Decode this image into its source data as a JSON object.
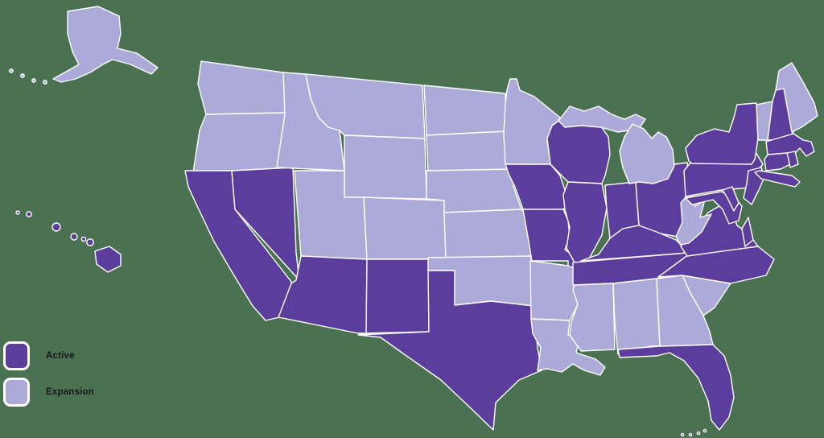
{
  "background_color": "#4a7152",
  "legend": {
    "items": [
      {
        "key": "active",
        "label": "Active",
        "color": "#5a3d9c"
      },
      {
        "key": "expansion",
        "label": "Expansion",
        "color": "#abaad9"
      }
    ]
  },
  "map": {
    "border_color": "#ffffff",
    "states": [
      {
        "id": "WA",
        "name": "Washington",
        "status": "expansion"
      },
      {
        "id": "OR",
        "name": "Oregon",
        "status": "expansion"
      },
      {
        "id": "CA",
        "name": "California",
        "status": "active"
      },
      {
        "id": "NV",
        "name": "Nevada",
        "status": "active"
      },
      {
        "id": "ID",
        "name": "Idaho",
        "status": "expansion"
      },
      {
        "id": "MT",
        "name": "Montana",
        "status": "expansion"
      },
      {
        "id": "WY",
        "name": "Wyoming",
        "status": "expansion"
      },
      {
        "id": "UT",
        "name": "Utah",
        "status": "expansion"
      },
      {
        "id": "CO",
        "name": "Colorado",
        "status": "expansion"
      },
      {
        "id": "AZ",
        "name": "Arizona",
        "status": "active"
      },
      {
        "id": "NM",
        "name": "New Mexico",
        "status": "active"
      },
      {
        "id": "ND",
        "name": "North Dakota",
        "status": "expansion"
      },
      {
        "id": "SD",
        "name": "South Dakota",
        "status": "expansion"
      },
      {
        "id": "NE",
        "name": "Nebraska",
        "status": "expansion"
      },
      {
        "id": "KS",
        "name": "Kansas",
        "status": "expansion"
      },
      {
        "id": "OK",
        "name": "Oklahoma",
        "status": "expansion"
      },
      {
        "id": "TX",
        "name": "Texas",
        "status": "active"
      },
      {
        "id": "MN",
        "name": "Minnesota",
        "status": "expansion"
      },
      {
        "id": "IA",
        "name": "Iowa",
        "status": "active"
      },
      {
        "id": "MO",
        "name": "Missouri",
        "status": "active"
      },
      {
        "id": "AR",
        "name": "Arkansas",
        "status": "expansion"
      },
      {
        "id": "LA",
        "name": "Louisiana",
        "status": "expansion"
      },
      {
        "id": "WI",
        "name": "Wisconsin",
        "status": "active"
      },
      {
        "id": "IL",
        "name": "Illinois",
        "status": "active"
      },
      {
        "id": "IN",
        "name": "Indiana",
        "status": "active"
      },
      {
        "id": "OH",
        "name": "Ohio",
        "status": "active"
      },
      {
        "id": "KY",
        "name": "Kentucky",
        "status": "active"
      },
      {
        "id": "TN",
        "name": "Tennessee",
        "status": "active"
      },
      {
        "id": "MI",
        "name": "Michigan",
        "status": "expansion"
      },
      {
        "id": "MS",
        "name": "Mississippi",
        "status": "expansion"
      },
      {
        "id": "AL",
        "name": "Alabama",
        "status": "expansion"
      },
      {
        "id": "GA",
        "name": "Georgia",
        "status": "expansion"
      },
      {
        "id": "SC",
        "name": "South Carolina",
        "status": "expansion"
      },
      {
        "id": "NC",
        "name": "North Carolina",
        "status": "active"
      },
      {
        "id": "VA",
        "name": "Virginia",
        "status": "active"
      },
      {
        "id": "WV",
        "name": "West Virginia",
        "status": "expansion"
      },
      {
        "id": "FL",
        "name": "Florida",
        "status": "active"
      },
      {
        "id": "PA",
        "name": "Pennsylvania",
        "status": "active"
      },
      {
        "id": "MD",
        "name": "Maryland",
        "status": "active"
      },
      {
        "id": "DE",
        "name": "Delaware",
        "status": "active"
      },
      {
        "id": "NJ",
        "name": "New Jersey",
        "status": "active"
      },
      {
        "id": "NY",
        "name": "New York",
        "status": "active"
      },
      {
        "id": "VT",
        "name": "Vermont",
        "status": "expansion"
      },
      {
        "id": "NH",
        "name": "New Hampshire",
        "status": "active"
      },
      {
        "id": "ME",
        "name": "Maine",
        "status": "expansion"
      },
      {
        "id": "MA",
        "name": "Massachusetts",
        "status": "active"
      },
      {
        "id": "CT",
        "name": "Connecticut",
        "status": "active"
      },
      {
        "id": "RI",
        "name": "Rhode Island",
        "status": "active"
      },
      {
        "id": "AK",
        "name": "Alaska",
        "status": "expansion"
      },
      {
        "id": "HI",
        "name": "Hawaii",
        "status": "active"
      }
    ]
  }
}
